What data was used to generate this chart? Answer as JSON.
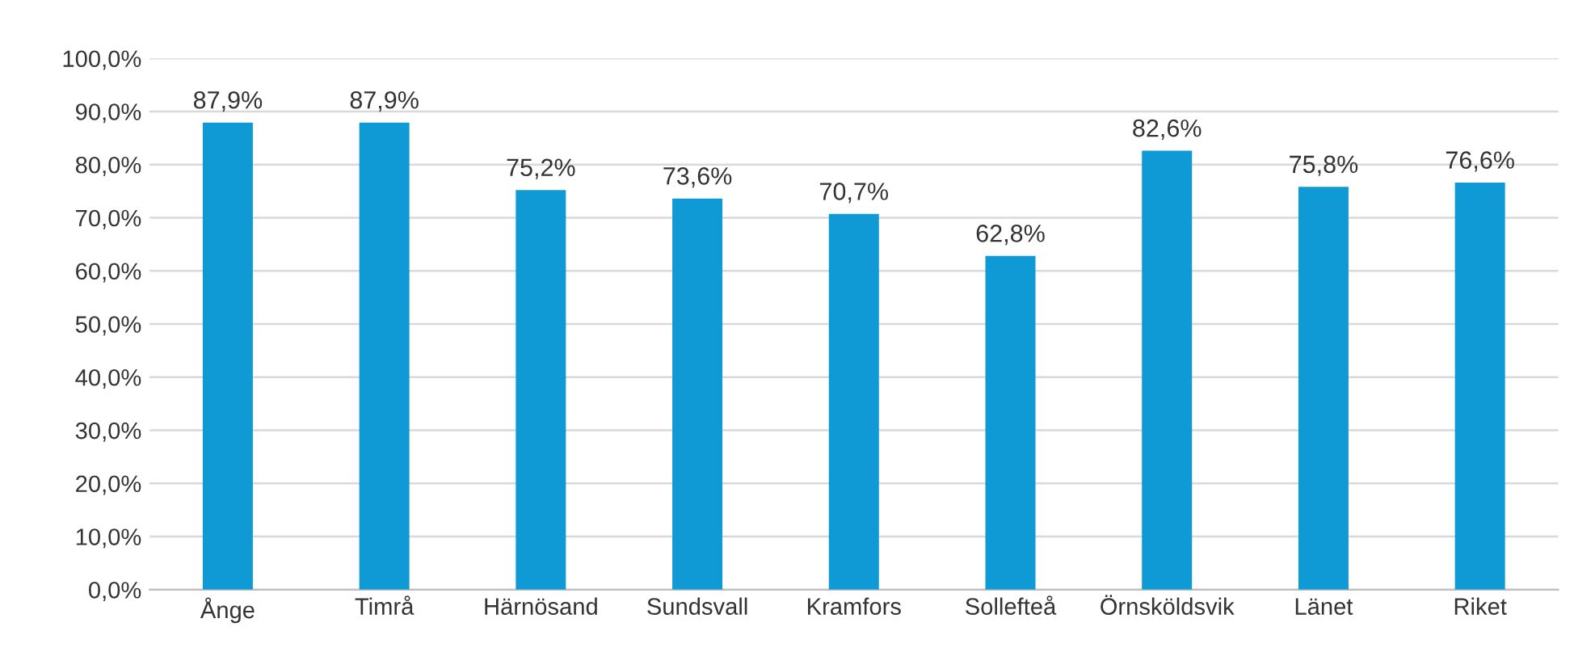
{
  "chart_data": {
    "type": "bar",
    "categories": [
      "Ånge",
      "Timrå",
      "Härnösand",
      "Sundsvall",
      "Kramfors",
      "Sollefteå",
      "Örnsköldsvik",
      "Länet",
      "Riket"
    ],
    "values": [
      87.9,
      87.9,
      75.2,
      73.6,
      70.7,
      62.8,
      82.6,
      75.8,
      76.6
    ],
    "value_labels": [
      "87,9%",
      "87,9%",
      "75,2%",
      "73,6%",
      "70,7%",
      "62,8%",
      "82,6%",
      "75,8%",
      "76,6%"
    ],
    "color": "#0f9ad6",
    "ylim": [
      0,
      100
    ],
    "yticks": [
      {
        "value": 0,
        "label": "0,0%"
      },
      {
        "value": 10,
        "label": "10,0%"
      },
      {
        "value": 20,
        "label": "20,0%"
      },
      {
        "value": 30,
        "label": "30,0%"
      },
      {
        "value": 40,
        "label": "40,0%"
      },
      {
        "value": 50,
        "label": "50,0%"
      },
      {
        "value": 60,
        "label": "60,0%"
      },
      {
        "value": 70,
        "label": "70,0%"
      },
      {
        "value": 80,
        "label": "80,0%"
      },
      {
        "value": 90,
        "label": "90,0%"
      },
      {
        "value": 100,
        "label": "100,0%"
      }
    ],
    "grid": "y",
    "legend": false
  }
}
